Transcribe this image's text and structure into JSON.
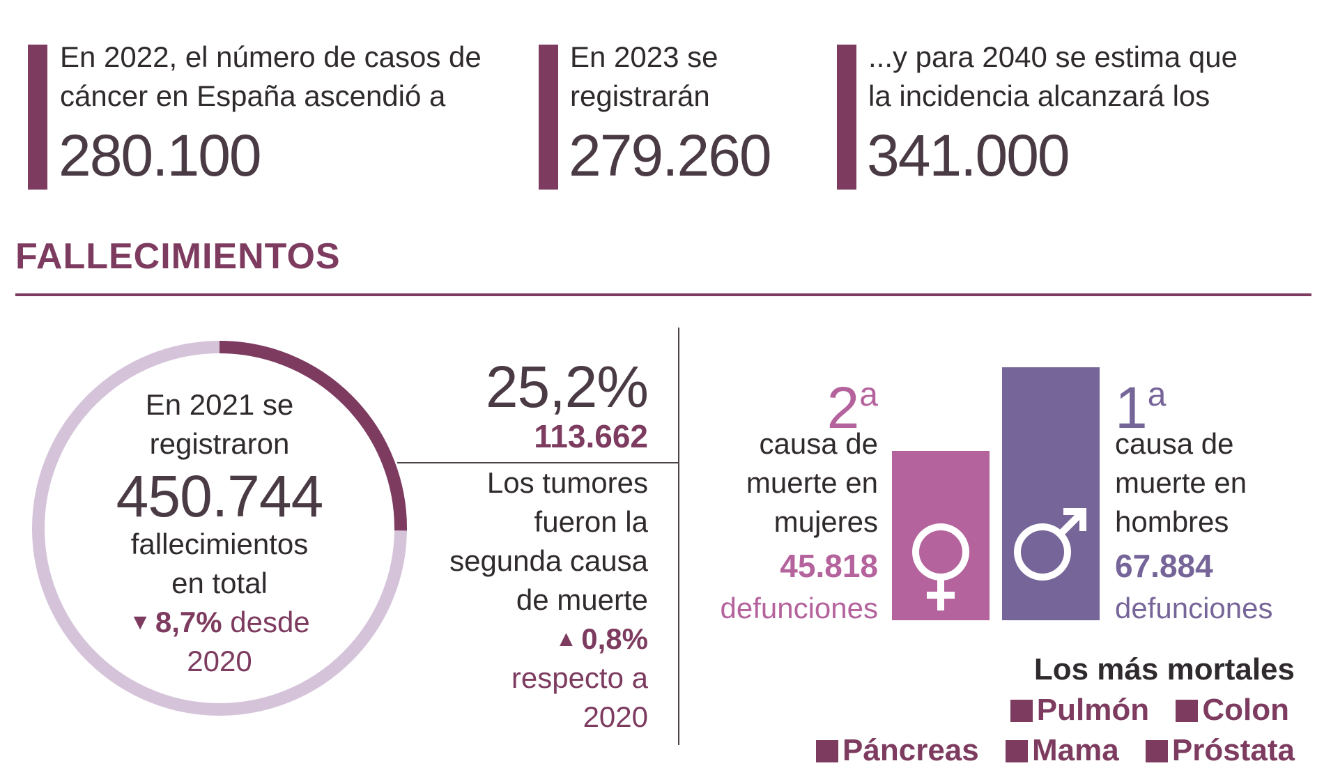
{
  "stats": [
    {
      "line1": "En 2022, el número de casos de",
      "line2": "cáncer en España ascendió a",
      "number": "280.100"
    },
    {
      "line1": "En 2023 se",
      "line2": "registrarán",
      "number": "279.260"
    },
    {
      "line1": "...y para 2040 se estima que",
      "line2": "la incidencia alcanzará los",
      "number": "341.000"
    }
  ],
  "section_title": "FALLECIMIENTOS",
  "donut": {
    "line1": "En 2021 se",
    "line2": "registraron",
    "number": "450.744",
    "line3": "fallecimientos",
    "line4": "en total",
    "change_arrow": "▼",
    "change_value": "8,7%",
    "change_rest": " desde",
    "year": "2020",
    "share_percent": 25.2,
    "colors": {
      "track": "#d5c3da",
      "fill": "#7d3b5f"
    }
  },
  "tumors": {
    "percent": "25,2%",
    "count": "113.662",
    "line1": "Los tumores",
    "line2": "fueron la",
    "line3": "segunda causa",
    "line4": "de muerte",
    "change_arrow": "▲",
    "change_value": "0,8%",
    "line5": "respecto a",
    "line6": "2020"
  },
  "women": {
    "rank": "2",
    "rank_suffix": "a",
    "line1": "causa de",
    "line2": "muerte en",
    "line3": "mujeres",
    "count": "45.818",
    "unit": "defunciones",
    "icon": "female-symbol-icon",
    "color": "#b4639d",
    "bar_level": 0.67
  },
  "men": {
    "rank": "1",
    "rank_suffix": "a",
    "line1": "causa de",
    "line2": "muerte en",
    "line3": "hombres",
    "count": "67.884",
    "unit": "defunciones",
    "icon": "male-symbol-icon",
    "color": "#766598",
    "bar_level": 1.0
  },
  "legend": {
    "title": "Los más mortales",
    "row1": [
      "Pulmón",
      "Colon"
    ],
    "row2": [
      "Páncreas",
      "Mama",
      "Próstata"
    ]
  },
  "colors": {
    "accent": "#7d3b5f",
    "women": "#b4639d",
    "men": "#766598",
    "light_purple": "#d5c3da",
    "text": "#2f2a2d"
  }
}
